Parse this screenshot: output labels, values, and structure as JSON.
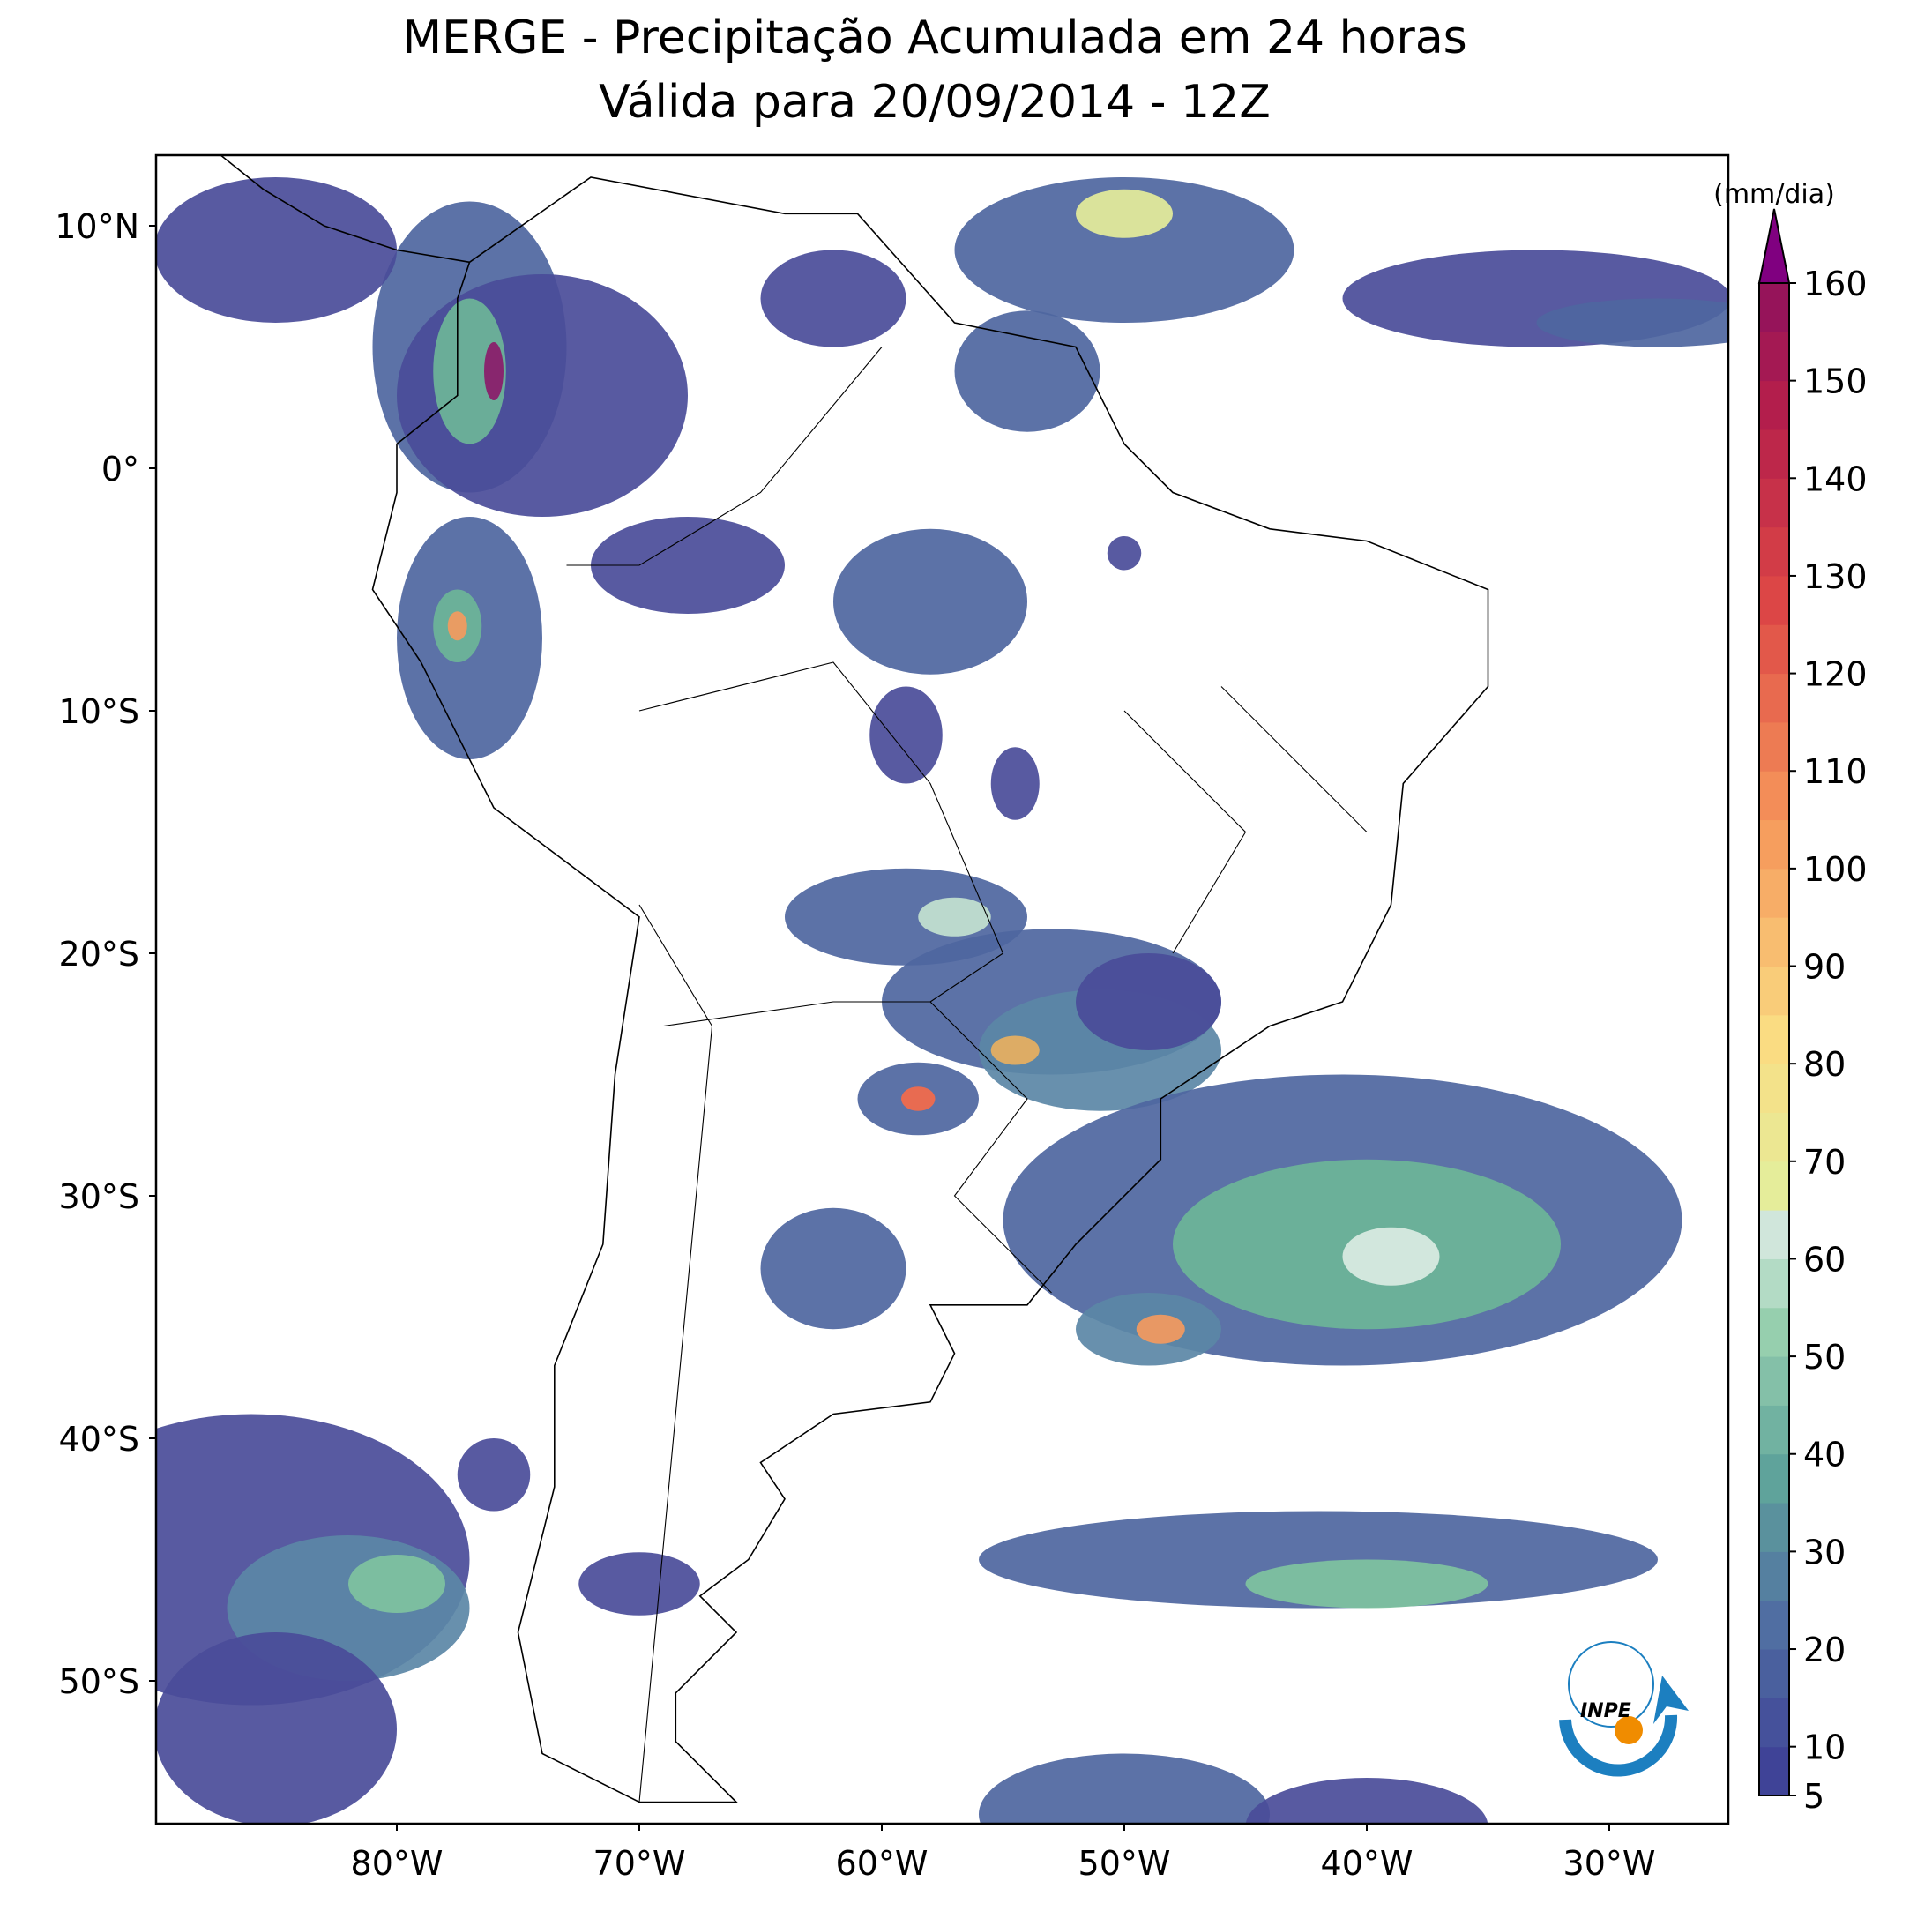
{
  "header": {
    "title": "MERGE - Precipitação Acumulada em 24 horas",
    "subtitle": "Válida para 20/09/2014 - 12Z"
  },
  "map": {
    "lat_labels": [
      {
        "value": 10,
        "label": "10°N"
      },
      {
        "value": 0,
        "label": "0°"
      },
      {
        "value": -10,
        "label": "10°S"
      },
      {
        "value": -20,
        "label": "20°S"
      },
      {
        "value": -30,
        "label": "30°S"
      },
      {
        "value": -40,
        "label": "40°S"
      },
      {
        "value": -50,
        "label": "50°S"
      }
    ],
    "lon_labels": [
      {
        "value": -80,
        "label": "80°W"
      },
      {
        "value": -70,
        "label": "70°W"
      },
      {
        "value": -60,
        "label": "60°W"
      },
      {
        "value": -50,
        "label": "50°W"
      },
      {
        "value": -40,
        "label": "40°W"
      },
      {
        "value": -30,
        "label": "30°W"
      }
    ]
  },
  "colorbar": {
    "unit": "(mm/dia)",
    "range": [
      5,
      160
    ],
    "ticks": [
      5,
      10,
      20,
      30,
      40,
      50,
      60,
      70,
      80,
      90,
      100,
      110,
      120,
      130,
      140,
      150,
      160
    ]
  },
  "logo": {
    "text": "INPE"
  }
}
